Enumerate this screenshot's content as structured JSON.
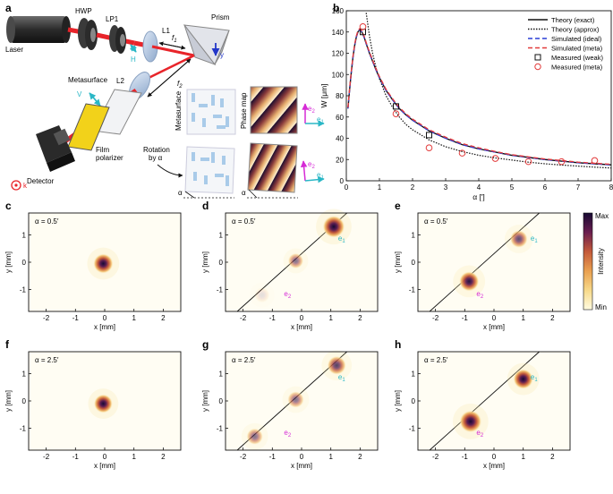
{
  "panels": {
    "a": {
      "letter": "a",
      "labels": {
        "laser": "Laser",
        "hwp": "HWP",
        "lp1": "LP1",
        "l1": "L1",
        "f1": "f",
        "f1_sub": "1",
        "prism": "Prism",
        "y": "y",
        "h": "H",
        "l2": "L2",
        "f2": "f",
        "f2_sub": "2",
        "metasurface": "Metasurface",
        "v": "V",
        "film_polarizer": "Film\npolarizer",
        "detector": "Detector",
        "k": "k",
        "metasurface_vertical": "Metasurface",
        "phase_map": "Phase map",
        "rotation": "Rotation\nby α",
        "alpha": "α",
        "e1": "e",
        "e1_sub": "1",
        "e2": "e",
        "e2_sub": "2"
      },
      "colors": {
        "beam": "#e8242a",
        "cyan": "#2ab7c6",
        "magenta": "#d62bd6",
        "blue": "#2236c8",
        "k": "#e8242a"
      }
    },
    "b": {
      "letter": "b",
      "chart_data": {
        "type": "line",
        "xlabel": "α [′]",
        "ylabel": "W [μm]",
        "xlim": [
          0,
          8
        ],
        "ylim": [
          0,
          160
        ],
        "xticks": [
          0,
          1,
          2,
          3,
          4,
          5,
          6,
          7,
          8
        ],
        "yticks": [
          0,
          20,
          40,
          60,
          80,
          100,
          120,
          140,
          160
        ],
        "legend_position": "top-right",
        "series": [
          {
            "name": "Theory (exact)",
            "style": "solid",
            "color": "#111111",
            "x": [
              0.05,
              0.1,
              0.15,
              0.2,
              0.25,
              0.3,
              0.35,
              0.4,
              0.45,
              0.5,
              0.55,
              0.6,
              0.7,
              0.8,
              0.9,
              1.0,
              1.2,
              1.4,
              1.6,
              1.8,
              2.0,
              2.5,
              3.0,
              3.5,
              4.0,
              4.5,
              5.0,
              5.5,
              6.0,
              6.5,
              7.0,
              7.5,
              8.0
            ],
            "y": [
              68,
              86,
              102,
              116,
              127,
              135,
              140,
              142,
              141,
              138,
              134,
              129,
              120,
              112,
              104,
              97,
              85,
              76,
              68,
              62,
              57,
              47,
              40,
              34,
              30,
              27,
              24,
              22,
              20,
              18.5,
              17,
              16,
              15
            ]
          },
          {
            "name": "Theory (approx)",
            "style": "dotted",
            "color": "#111111",
            "x": [
              0.6,
              0.7,
              0.8,
              0.9,
              1.0,
              1.2,
              1.4,
              1.6,
              1.8,
              2.0,
              2.5,
              3.0,
              3.5,
              4.0,
              4.5,
              5.0,
              5.5,
              6.0,
              6.5,
              7.0,
              7.5,
              8.0
            ],
            "y": [
              158,
              136,
              119,
              106,
              96,
              80,
              69,
              60,
              53,
              48,
              38.5,
              32,
              27.5,
              24,
              21.5,
              19.5,
              17.5,
              16,
              14.8,
              13.8,
              12.8,
              12
            ]
          },
          {
            "name": "Simulated (ideal)",
            "style": "dashed",
            "color": "#2a3fd6",
            "x": [
              0.05,
              0.1,
              0.15,
              0.2,
              0.25,
              0.3,
              0.35,
              0.4,
              0.45,
              0.5,
              0.55,
              0.6,
              0.7,
              0.8,
              0.9,
              1.0,
              1.2,
              1.4,
              1.6,
              1.8,
              2.0,
              2.5,
              3.0,
              3.5,
              4.0,
              4.5,
              5.0,
              5.5,
              6.0,
              6.5,
              7.0,
              7.5,
              8.0
            ],
            "y": [
              68,
              86,
              102,
              116,
              127,
              135,
              140,
              142,
              141,
              138,
              134,
              129,
              120,
              112,
              104,
              97,
              85,
              76,
              68,
              62,
              57,
              47,
              40,
              34,
              30,
              27,
              24,
              22,
              20,
              18.5,
              17,
              16,
              15
            ]
          },
          {
            "name": "Simulated (meta)",
            "style": "dashed",
            "color": "#e23b3b",
            "x": [
              0.05,
              0.1,
              0.15,
              0.2,
              0.25,
              0.3,
              0.35,
              0.4,
              0.45,
              0.5,
              0.55,
              0.6,
              0.7,
              0.8,
              0.9,
              1.0,
              1.2,
              1.4,
              1.6,
              1.8,
              2.0,
              2.5,
              3.0,
              3.5,
              4.0,
              4.5,
              5.0,
              5.5,
              6.0,
              6.5,
              7.0,
              7.5,
              8.0
            ],
            "y": [
              69,
              87,
              103,
              117,
              128,
              136,
              141,
              143,
              142,
              139,
              135,
              130,
              121,
              113,
              105,
              98,
              86,
              77,
              69,
              63,
              58,
              48,
              41,
              35,
              31,
              27.5,
              24.5,
              22.5,
              20.5,
              19,
              17.5,
              16.5,
              15.5
            ]
          },
          {
            "name": "Measured (weak)",
            "style": "marker-square",
            "color": "#111111",
            "x": [
              0.5,
              1.5,
              2.5
            ],
            "y": [
              140,
              70,
              43
            ]
          },
          {
            "name": "Measured (meta)",
            "style": "marker-circle",
            "color": "#e23b3b",
            "x": [
              0.5,
              1.5,
              2.5,
              3.5,
              4.5,
              5.5,
              6.5,
              7.5
            ],
            "y": [
              145,
              63,
              31,
              26,
              21,
              18,
              18,
              19
            ]
          }
        ]
      }
    },
    "intensity_maps": {
      "xlabel": "x [mm]",
      "ylabel": "y [mm]",
      "xticks": [
        -2,
        -1,
        0,
        1,
        2
      ],
      "yticks": [
        -1,
        0,
        1
      ],
      "colorbar": {
        "label": "Intensity",
        "max": "Max",
        "min": "Min"
      },
      "e1": "e",
      "e1_sub": "1",
      "e2": "e",
      "e2_sub": "2",
      "rows": [
        {
          "alpha": "α = 0.5′",
          "maps": [
            {
              "letter": "c",
              "diagonal": false,
              "spots": [
                {
                  "x": -0.05,
                  "y": -0.05,
                  "r": 0.18,
                  "a": 1.0
                }
              ],
              "show_e": false
            },
            {
              "letter": "d",
              "diagonal": true,
              "spots": [
                {
                  "x": 1.1,
                  "y": 1.3,
                  "r": 0.2,
                  "a": 1.0
                },
                {
                  "x": -0.2,
                  "y": 0.05,
                  "r": 0.14,
                  "a": 0.55
                },
                {
                  "x": -1.35,
                  "y": -1.2,
                  "r": 0.14,
                  "a": 0.12
                }
              ],
              "show_e": true
            },
            {
              "letter": "e",
              "diagonal": true,
              "spots": [
                {
                  "x": 0.85,
                  "y": 0.85,
                  "r": 0.16,
                  "a": 0.7
                },
                {
                  "x": -0.85,
                  "y": -0.7,
                  "r": 0.18,
                  "a": 0.95
                }
              ],
              "show_e": true
            }
          ]
        },
        {
          "alpha": "α = 2.5′",
          "maps": [
            {
              "letter": "f",
              "diagonal": false,
              "spots": [
                {
                  "x": -0.05,
                  "y": -0.1,
                  "r": 0.17,
                  "a": 1.0
                }
              ],
              "show_e": false
            },
            {
              "letter": "g",
              "diagonal": true,
              "spots": [
                {
                  "x": 1.2,
                  "y": 1.3,
                  "r": 0.17,
                  "a": 0.75
                },
                {
                  "x": -0.2,
                  "y": 0.05,
                  "r": 0.15,
                  "a": 0.55
                },
                {
                  "x": -1.6,
                  "y": -1.3,
                  "r": 0.15,
                  "a": 0.55
                }
              ],
              "show_e": true
            },
            {
              "letter": "h",
              "diagonal": true,
              "spots": [
                {
                  "x": 1.0,
                  "y": 0.8,
                  "r": 0.18,
                  "a": 1.0
                },
                {
                  "x": -0.8,
                  "y": -0.75,
                  "r": 0.2,
                  "a": 1.0
                }
              ],
              "show_e": true
            }
          ]
        }
      ]
    }
  }
}
